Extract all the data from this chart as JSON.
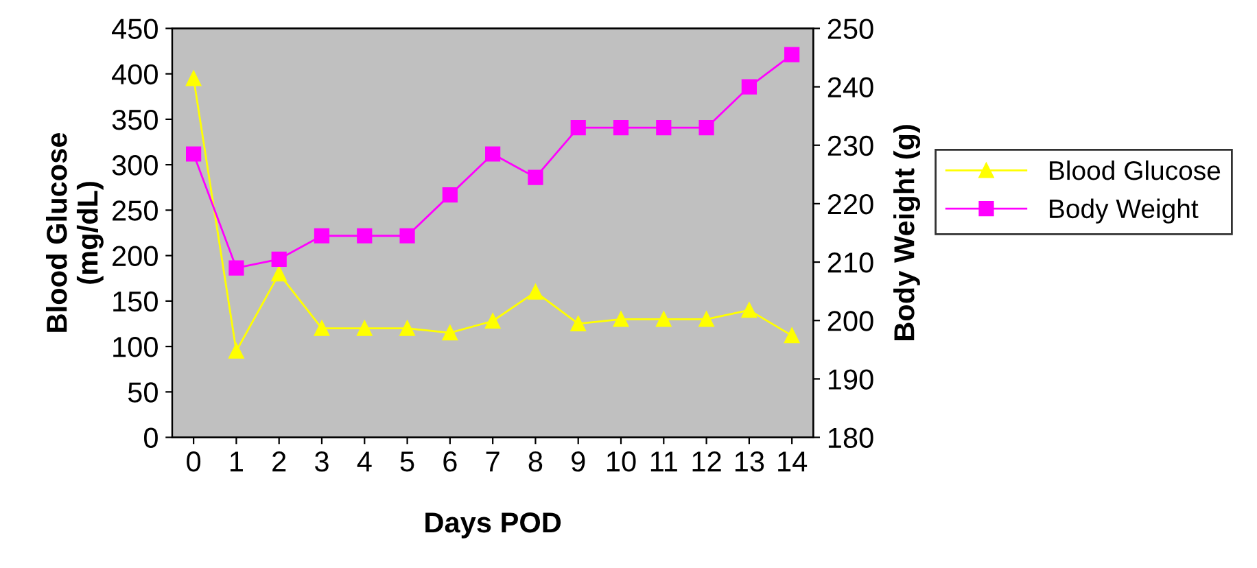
{
  "chart_data": {
    "type": "line",
    "xlabel": "Days POD",
    "ylabel": "Blood Glucose\n(mg/dL)",
    "y2label": "Body Weight (g)",
    "categories": [
      "0",
      "1",
      "2",
      "3",
      "4",
      "5",
      "6",
      "7",
      "8",
      "9",
      "10",
      "11",
      "12",
      "13",
      "14"
    ],
    "series": [
      {
        "name": "Blood Glucose",
        "color": "#ffff00",
        "marker": "triangle",
        "values": [
          395,
          95,
          180,
          120,
          120,
          120,
          115,
          128,
          160,
          125,
          130,
          130,
          130,
          140,
          112
        ]
      },
      {
        "name": "Body Weight",
        "color": "#ff00ff",
        "marker": "square",
        "axis": "y2",
        "values": [
          228.5,
          209,
          210.5,
          214.5,
          214.5,
          214.5,
          221.5,
          228.5,
          224.5,
          233,
          233,
          233,
          233,
          240,
          245.5
        ]
      }
    ],
    "ylim": [
      0,
      450
    ],
    "yticks": [
      0,
      50,
      100,
      150,
      200,
      250,
      300,
      350,
      400,
      450
    ],
    "y2lim": [
      180,
      250
    ],
    "y2ticks": [
      180,
      190,
      200,
      210,
      220,
      230,
      240,
      250
    ],
    "grid": false,
    "legend": "right",
    "line_style": "solid"
  }
}
